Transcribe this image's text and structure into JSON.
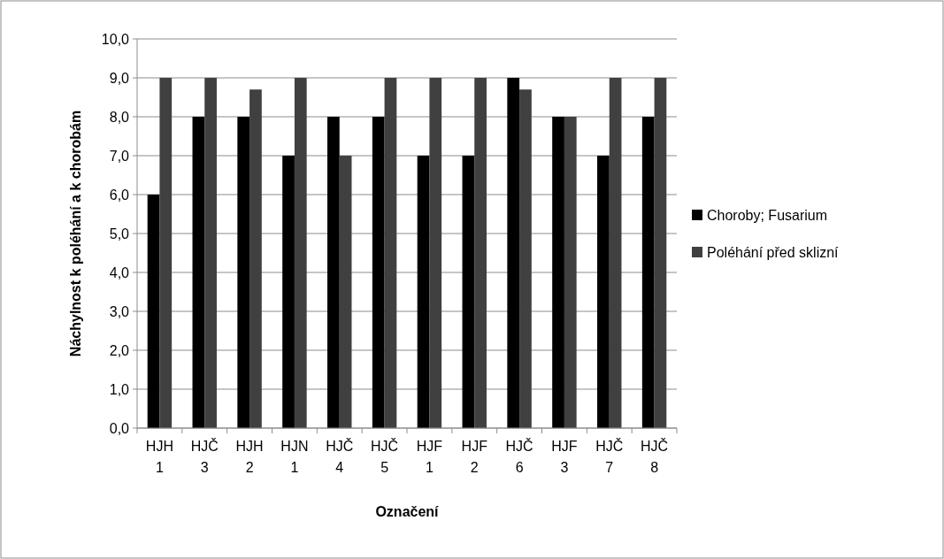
{
  "chart_data": {
    "type": "bar",
    "xlabel": "Označení",
    "ylabel": "Náchylnost k poléhání a k chorobám",
    "categories": [
      "HJH 1",
      "HJČ 3",
      "HJH 2",
      "HJN 1",
      "HJČ 4",
      "HJČ 5",
      "HJF 1",
      "HJF 2",
      "HJČ 6",
      "HJF 3",
      "HJČ 7",
      "HJČ 8"
    ],
    "series": [
      {
        "name": "Choroby; Fusarium",
        "color": "#000000",
        "values": [
          6,
          8,
          8,
          7,
          8,
          8,
          7,
          7,
          9,
          8,
          7,
          8
        ]
      },
      {
        "name": "Poléhání před sklizní",
        "color": "#404040",
        "values": [
          9,
          9,
          8.7,
          9,
          7,
          9,
          9,
          9,
          8.7,
          8,
          9,
          9
        ]
      }
    ],
    "ylim": [
      0,
      10
    ],
    "yticks": [
      {
        "value": 0,
        "label": "0,0"
      },
      {
        "value": 1,
        "label": "1,0"
      },
      {
        "value": 2,
        "label": "2,0"
      },
      {
        "value": 3,
        "label": "3,0"
      },
      {
        "value": 4,
        "label": "4,0"
      },
      {
        "value": 5,
        "label": "5,0"
      },
      {
        "value": 6,
        "label": "6,0"
      },
      {
        "value": 7,
        "label": "7,0"
      },
      {
        "value": 8,
        "label": "8,0"
      },
      {
        "value": 9,
        "label": "9,0"
      },
      {
        "value": 10,
        "label": "10,0"
      }
    ],
    "grid": "y",
    "legend": "right"
  }
}
